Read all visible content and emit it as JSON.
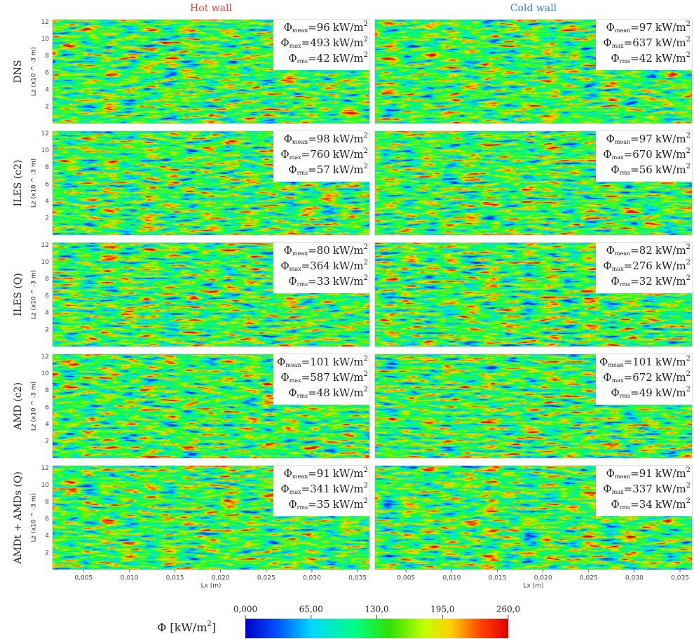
{
  "figure": {
    "columns": [
      {
        "title": "Hot wall",
        "color": "#d9443c"
      },
      {
        "title": "Cold wall",
        "color": "#3a7fc4"
      }
    ],
    "symbol": "Φ",
    "equals": "=",
    "stat_names": [
      "mean",
      "max",
      "rms"
    ],
    "stat_unit": "kW/m",
    "stat_unit_power": "2",
    "rows": [
      {
        "label": "DNS",
        "panels": [
          {
            "mean": 96,
            "max": 493,
            "rms": 42
          },
          {
            "mean": 97,
            "max": 637,
            "rms": 42
          }
        ]
      },
      {
        "label": "ILES (c2)",
        "panels": [
          {
            "mean": 98,
            "max": 760,
            "rms": 57
          },
          {
            "mean": 97,
            "max": 670,
            "rms": 56
          }
        ]
      },
      {
        "label": "ILES (Q)",
        "panels": [
          {
            "mean": 80,
            "max": 364,
            "rms": 33
          },
          {
            "mean": 82,
            "max": 276,
            "rms": 32
          }
        ]
      },
      {
        "label": "AMD (c2)",
        "panels": [
          {
            "mean": 101,
            "max": 587,
            "rms": 48
          },
          {
            "mean": 101,
            "max": 672,
            "rms": 49
          }
        ]
      },
      {
        "label": "AMDt + AMDs (Q)",
        "panels": [
          {
            "mean": 91,
            "max": 341,
            "rms": 35
          },
          {
            "mean": 91,
            "max": 337,
            "rms": 34
          }
        ]
      }
    ],
    "ylabel": "Lz (x10 ^ -3 m)",
    "ylim": [
      0,
      12.3
    ],
    "yticks": [
      2,
      4,
      6,
      8,
      10,
      12
    ],
    "xlabel": "Lx (m)",
    "xlim": [
      0.0016,
      0.0363
    ],
    "xticks": [
      {
        "value": 0.005,
        "label": "0,005"
      },
      {
        "value": 0.01,
        "label": "0,010"
      },
      {
        "value": 0.015,
        "label": "0,015"
      },
      {
        "value": 0.02,
        "label": "0,020"
      },
      {
        "value": 0.025,
        "label": "0,025"
      },
      {
        "value": 0.03,
        "label": "0,030"
      },
      {
        "value": 0.035,
        "label": "0,035"
      }
    ],
    "colorbar": {
      "label": "Φ [kW/m",
      "label_power": "2",
      "label_end": "]",
      "lim": [
        0,
        260
      ],
      "ticks": [
        {
          "value": 0,
          "label": "0,000"
        },
        {
          "value": 65,
          "label": "65,00"
        },
        {
          "value": 130,
          "label": "130,0"
        },
        {
          "value": 195,
          "label": "195,0"
        },
        {
          "value": 260,
          "label": "260,0"
        }
      ]
    }
  }
}
